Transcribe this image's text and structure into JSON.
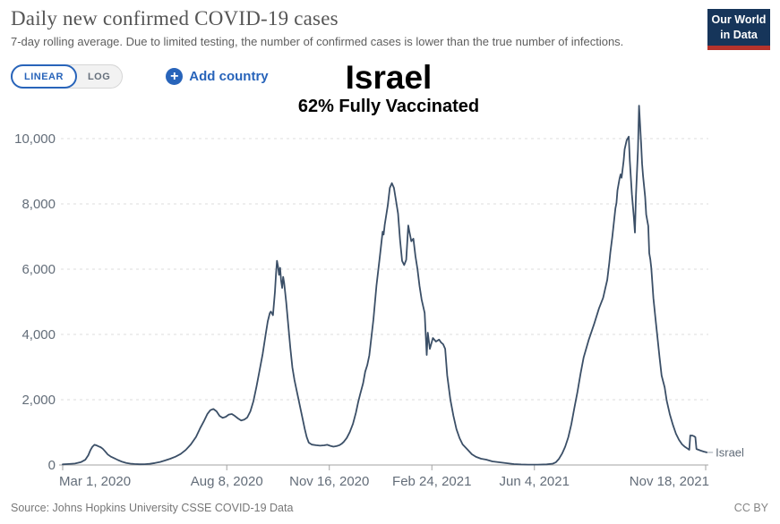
{
  "header": {
    "title": "Daily new confirmed COVID-19 cases",
    "subtitle": "7-day rolling average. Due to limited testing, the number of confirmed cases is lower than the true number of infections.",
    "logo": {
      "line1": "Our World",
      "line2": "in Data",
      "bg_color": "#16355a",
      "stripe_color": "#b5332c"
    }
  },
  "controls": {
    "linear_label": "LINEAR",
    "log_label": "LOG",
    "add_country_label": "Add country",
    "accent_blue": "#2864ba",
    "inactive_gray": "#66707c"
  },
  "annotation": {
    "country": "Israel",
    "vaccinated": "62% Fully Vaccinated"
  },
  "footer": {
    "source": "Source: Johns Hopkins University CSSE COVID-19 Data",
    "license": "CC BY"
  },
  "chart_data": {
    "type": "line",
    "title": "Daily new confirmed COVID-19 cases",
    "xlabel": "",
    "ylabel": "",
    "grid": "dashed-horizontal",
    "legend_position": "end-of-line-label",
    "x_unit": "days since Mar 1, 2020",
    "x_range_days": [
      0,
      627
    ],
    "ylim": [
      0,
      10000
    ],
    "y_axis": {
      "ticks": [
        {
          "value": 0,
          "label": "0"
        },
        {
          "value": 2000,
          "label": "2,000"
        },
        {
          "value": 4000,
          "label": "4,000"
        },
        {
          "value": 6000,
          "label": "6,000"
        },
        {
          "value": 8000,
          "label": "8,000"
        },
        {
          "value": 10000,
          "label": "10,000"
        }
      ]
    },
    "x_axis": {
      "ticks": [
        {
          "day": 0,
          "label": "Mar 1, 2020"
        },
        {
          "day": 160,
          "label": "Aug 8, 2020"
        },
        {
          "day": 260,
          "label": "Nov 16, 2020"
        },
        {
          "day": 360,
          "label": "Feb 24, 2021"
        },
        {
          "day": 460,
          "label": "Jun 4, 2021"
        },
        {
          "day": 627,
          "label": "Nov 18, 2021"
        }
      ]
    },
    "series": [
      {
        "name": "Israel",
        "color": "#3b4f67",
        "points": [
          [
            0,
            20
          ],
          [
            6,
            30
          ],
          [
            12,
            45
          ],
          [
            18,
            90
          ],
          [
            22,
            160
          ],
          [
            25,
            300
          ],
          [
            27,
            450
          ],
          [
            29,
            560
          ],
          [
            31,
            620
          ],
          [
            33,
            600
          ],
          [
            35,
            570
          ],
          [
            37,
            545
          ],
          [
            39,
            500
          ],
          [
            41,
            430
          ],
          [
            44,
            320
          ],
          [
            47,
            255
          ],
          [
            50,
            210
          ],
          [
            54,
            150
          ],
          [
            58,
            100
          ],
          [
            62,
            62
          ],
          [
            66,
            42
          ],
          [
            70,
            30
          ],
          [
            75,
            22
          ],
          [
            80,
            26
          ],
          [
            85,
            36
          ],
          [
            90,
            60
          ],
          [
            95,
            92
          ],
          [
            100,
            140
          ],
          [
            105,
            192
          ],
          [
            110,
            256
          ],
          [
            115,
            336
          ],
          [
            120,
            460
          ],
          [
            125,
            630
          ],
          [
            130,
            860
          ],
          [
            134,
            1120
          ],
          [
            138,
            1360
          ],
          [
            141,
            1560
          ],
          [
            144,
            1680
          ],
          [
            147,
            1715
          ],
          [
            150,
            1645
          ],
          [
            153,
            1505
          ],
          [
            156,
            1445
          ],
          [
            159,
            1478
          ],
          [
            162,
            1545
          ],
          [
            165,
            1562
          ],
          [
            168,
            1500
          ],
          [
            171,
            1425
          ],
          [
            174,
            1365
          ],
          [
            177,
            1388
          ],
          [
            180,
            1455
          ],
          [
            183,
            1645
          ],
          [
            186,
            1955
          ],
          [
            189,
            2400
          ],
          [
            192,
            2905
          ],
          [
            195,
            3400
          ],
          [
            198,
            4005
          ],
          [
            200,
            4400
          ],
          [
            202,
            4655
          ],
          [
            203,
            4700
          ],
          [
            205,
            4590
          ],
          [
            207,
            5300
          ],
          [
            208,
            5850
          ],
          [
            209,
            6255
          ],
          [
            210,
            6080
          ],
          [
            211,
            5825
          ],
          [
            212,
            6040
          ],
          [
            213,
            5650
          ],
          [
            214,
            5425
          ],
          [
            215,
            5765
          ],
          [
            216,
            5580
          ],
          [
            218,
            4985
          ],
          [
            220,
            4285
          ],
          [
            222,
            3585
          ],
          [
            224,
            2985
          ],
          [
            226,
            2605
          ],
          [
            228,
            2305
          ],
          [
            230,
            2005
          ],
          [
            232,
            1705
          ],
          [
            234,
            1405
          ],
          [
            236,
            1105
          ],
          [
            238,
            855
          ],
          [
            240,
            685
          ],
          [
            243,
            625
          ],
          [
            247,
            605
          ],
          [
            251,
            592
          ],
          [
            255,
            602
          ],
          [
            258,
            618
          ],
          [
            261,
            585
          ],
          [
            264,
            562
          ],
          [
            267,
            578
          ],
          [
            270,
            608
          ],
          [
            272,
            648
          ],
          [
            274,
            708
          ],
          [
            277,
            828
          ],
          [
            280,
            1008
          ],
          [
            283,
            1258
          ],
          [
            286,
            1608
          ],
          [
            288,
            1908
          ],
          [
            290,
            2158
          ],
          [
            293,
            2508
          ],
          [
            295,
            2858
          ],
          [
            297,
            3058
          ],
          [
            299,
            3358
          ],
          [
            301,
            3910
          ],
          [
            303,
            4460
          ],
          [
            306,
            5500
          ],
          [
            309,
            6300
          ],
          [
            312,
            7150
          ],
          [
            313,
            7060
          ],
          [
            314,
            7360
          ],
          [
            317,
            7950
          ],
          [
            319,
            8490
          ],
          [
            321,
            8635
          ],
          [
            323,
            8490
          ],
          [
            325,
            8100
          ],
          [
            327,
            7700
          ],
          [
            329,
            6900
          ],
          [
            331,
            6255
          ],
          [
            333,
            6125
          ],
          [
            335,
            6285
          ],
          [
            337,
            7340
          ],
          [
            338,
            7155
          ],
          [
            340,
            6855
          ],
          [
            342,
            6935
          ],
          [
            344,
            6400
          ],
          [
            346,
            6000
          ],
          [
            348,
            5480
          ],
          [
            350,
            5070
          ],
          [
            353,
            4660
          ],
          [
            355,
            3370
          ],
          [
            356,
            4055
          ],
          [
            358,
            3560
          ],
          [
            361,
            3890
          ],
          [
            364,
            3780
          ],
          [
            367,
            3840
          ],
          [
            369,
            3750
          ],
          [
            371,
            3700
          ],
          [
            373,
            3560
          ],
          [
            375,
            2740
          ],
          [
            378,
            2005
          ],
          [
            381,
            1510
          ],
          [
            384,
            1100
          ],
          [
            387,
            822
          ],
          [
            390,
            630
          ],
          [
            395,
            466
          ],
          [
            399,
            330
          ],
          [
            403,
            250
          ],
          [
            408,
            192
          ],
          [
            413,
            164
          ],
          [
            419,
            110
          ],
          [
            426,
            82
          ],
          [
            433,
            55
          ],
          [
            440,
            28
          ],
          [
            447,
            16
          ],
          [
            454,
            10
          ],
          [
            463,
            10
          ],
          [
            472,
            20
          ],
          [
            478,
            40
          ],
          [
            481,
            85
          ],
          [
            484,
            190
          ],
          [
            487,
            350
          ],
          [
            490,
            560
          ],
          [
            493,
            850
          ],
          [
            496,
            1250
          ],
          [
            499,
            1750
          ],
          [
            502,
            2250
          ],
          [
            505,
            2800
          ],
          [
            508,
            3290
          ],
          [
            513,
            3840
          ],
          [
            518,
            4300
          ],
          [
            523,
            4800
          ],
          [
            527,
            5120
          ],
          [
            529,
            5400
          ],
          [
            531,
            5670
          ],
          [
            533,
            6200
          ],
          [
            534,
            6500
          ],
          [
            536,
            7000
          ],
          [
            539,
            7860
          ],
          [
            540,
            8030
          ],
          [
            541,
            8410
          ],
          [
            543,
            8770
          ],
          [
            544,
            8905
          ],
          [
            545,
            8800
          ],
          [
            547,
            9320
          ],
          [
            548,
            9670
          ],
          [
            550,
            9950
          ],
          [
            552,
            10060
          ],
          [
            553,
            9320
          ],
          [
            555,
            8300
          ],
          [
            557,
            7590
          ],
          [
            558,
            7120
          ],
          [
            559,
            8220
          ],
          [
            561,
            9670
          ],
          [
            562,
            11010
          ],
          [
            564,
            9860
          ],
          [
            565,
            9230
          ],
          [
            566,
            8850
          ],
          [
            568,
            8220
          ],
          [
            569,
            7670
          ],
          [
            571,
            7320
          ],
          [
            572,
            6490
          ],
          [
            573,
            6300
          ],
          [
            574,
            6030
          ],
          [
            575,
            5560
          ],
          [
            576,
            5120
          ],
          [
            578,
            4500
          ],
          [
            580,
            3900
          ],
          [
            582,
            3300
          ],
          [
            584,
            2740
          ],
          [
            587,
            2380
          ],
          [
            589,
            1970
          ],
          [
            592,
            1560
          ],
          [
            595,
            1230
          ],
          [
            598,
            960
          ],
          [
            601,
            770
          ],
          [
            604,
            630
          ],
          [
            607,
            550
          ],
          [
            610,
            490
          ],
          [
            611,
            466
          ],
          [
            612,
            905
          ],
          [
            614,
            900
          ],
          [
            616,
            875
          ],
          [
            617,
            850
          ],
          [
            618,
            490
          ],
          [
            620,
            466
          ],
          [
            622,
            440
          ],
          [
            625,
            410
          ],
          [
            628,
            385
          ]
        ]
      }
    ]
  }
}
